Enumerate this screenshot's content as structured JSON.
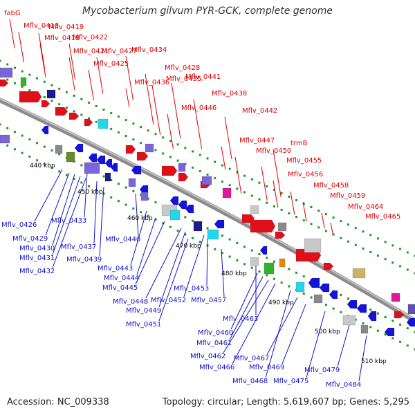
{
  "title": "Mycobacterium gilvum PYR-GCK, complete genome",
  "footer": {
    "accession": "Accession: NC_009338",
    "summary": "Topology: circular; Length: 5,619,607 bp; Genes: 5,295"
  },
  "colors": {
    "forward_label": "#e00000",
    "reverse_label": "#1010c8",
    "backbone": "#9a9a9a",
    "tick_dots": "#1a9a1a"
  },
  "kbp_ticks": [
    "440 kbp",
    "450 kbp",
    "460 kbp",
    "470 kbp",
    "480 kbp",
    "490 kbp",
    "500 kbp",
    "510 kbp"
  ],
  "forward_labels": [
    "fabG",
    "Mflv_0413",
    "Mflv_0419",
    "Mflv_0418",
    "Mflv_0422",
    "Mflv_0421",
    "Mflv_0427",
    "Mflv_0425",
    "Mflv_0434",
    "Mflv_0428",
    "Mflv_0436",
    "Mflv_0435",
    "Mflv_0441",
    "Mflv_0438",
    "Mflv_0446",
    "Mflv_0442",
    "trmB",
    "Mflv_0447",
    "Mflv_0450",
    "Mflv_0455",
    "Mflv_0456",
    "Mflv_0458",
    "Mflv_0459",
    "Mflv_0464",
    "Mflv_0465"
  ],
  "reverse_labels": [
    "Mflv_0426",
    "Mflv_0433",
    "Mflv_0429",
    "Mflv_0430",
    "Mflv_0437",
    "Mflv_0431",
    "Mflv_0439",
    "Mflv_0432",
    "Mflv_0440",
    "Mflv_0443",
    "Mflv_0444",
    "Mflv_0445",
    "Mflv_0448",
    "Mflv_0452",
    "Mflv_0453",
    "Mflv_0457",
    "Mflv_0449",
    "Mflv_0451",
    "Mflv_0463",
    "Mflv_0460",
    "Mflv_0461",
    "Mflv_0462",
    "Mflv_0467",
    "Mflv_0466",
    "Mflv_0469",
    "Mflv_0468",
    "Mflv_0475",
    "Mflv_0479",
    "Mflv_0484"
  ]
}
